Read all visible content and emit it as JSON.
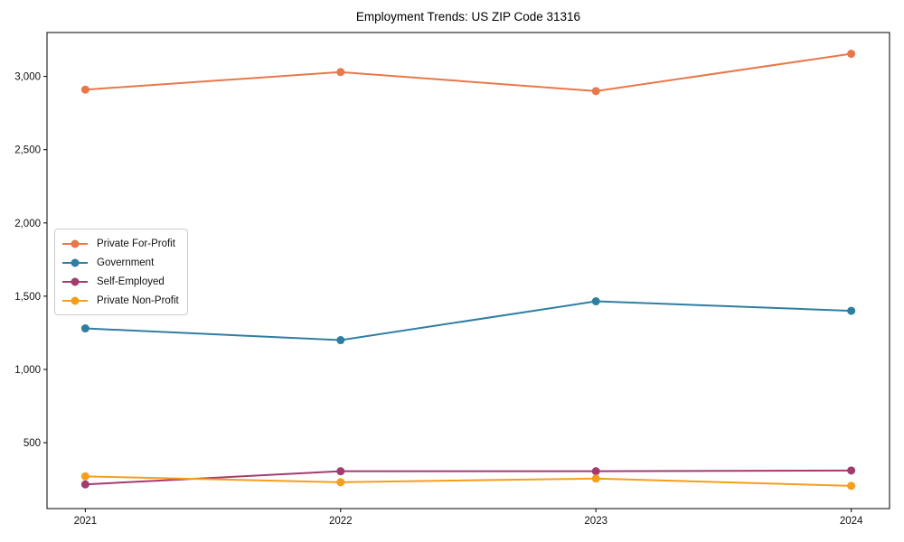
{
  "chart_data": {
    "type": "line",
    "title": "Employment Trends: US ZIP Code 31316",
    "x": [
      2021,
      2022,
      2023,
      2024
    ],
    "categories": [
      "2021",
      "2022",
      "2023",
      "2024"
    ],
    "series": [
      {
        "name": "Private For-Profit",
        "color": "#e8784a",
        "values": [
          2910,
          3030,
          2900,
          3155
        ]
      },
      {
        "name": "Government",
        "color": "#2f7ea1",
        "values": [
          1280,
          1200,
          1465,
          1400
        ]
      },
      {
        "name": "Self-Employed",
        "color": "#a33b71",
        "values": [
          215,
          305,
          305,
          310
        ]
      },
      {
        "name": "Private Non-Profit",
        "color": "#f59e1b",
        "values": [
          270,
          230,
          255,
          205
        ]
      }
    ],
    "xlabel": "",
    "ylabel": "",
    "xlim": [
      2020.85,
      2024.15
    ],
    "ylim": [
      50,
      3300
    ],
    "yticks": [
      500,
      1000,
      1500,
      2000,
      2500,
      3000
    ],
    "ytick_labels": [
      "500",
      "1,000",
      "1,500",
      "2,000",
      "2,500",
      "3,000"
    ],
    "grid": false,
    "legend_position": "center-left",
    "marker": "circle",
    "line_width": 2,
    "marker_radius": 4.5,
    "spine_color": "#000000"
  }
}
